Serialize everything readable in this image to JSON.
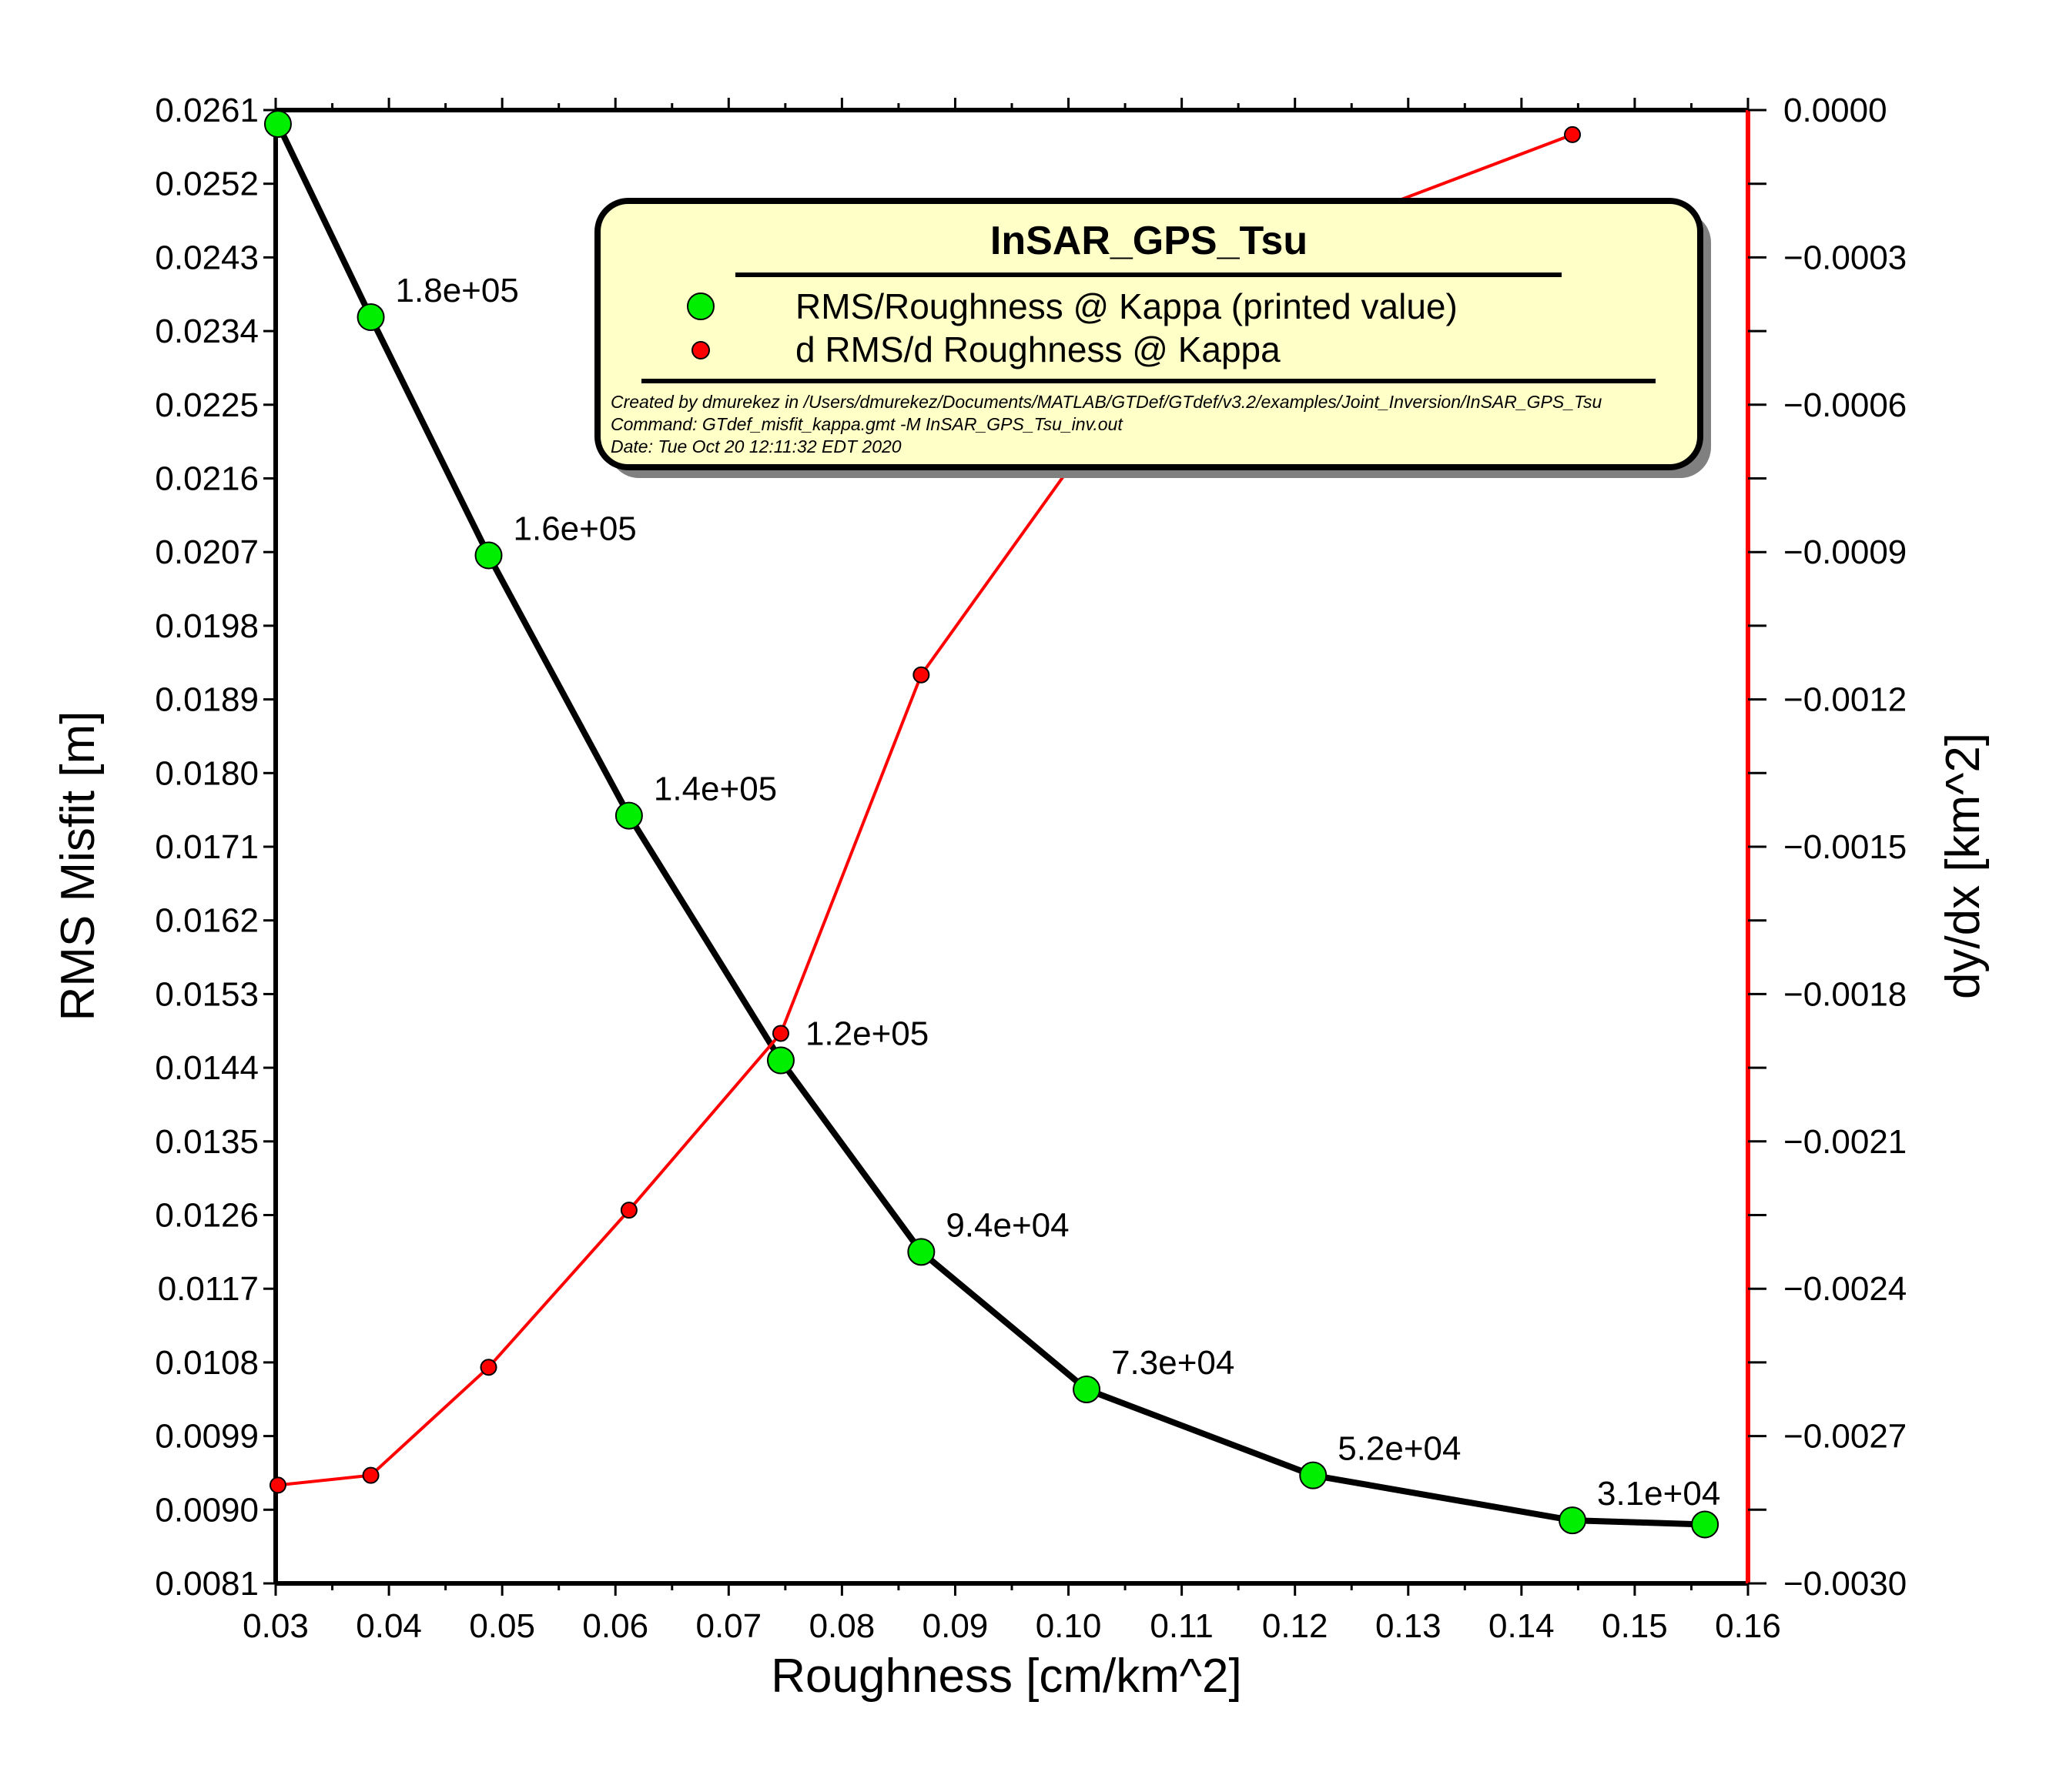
{
  "chart_data": {
    "type": "line",
    "xlabel": "Roughness [cm/km^2]",
    "ylabel": "RMS Misfit [m]",
    "y2label": "dy/dx [km^2]",
    "xlim": [
      0.03,
      0.16
    ],
    "ylim": [
      0.0081,
      0.0261
    ],
    "y2lim": [
      -0.003,
      0.0
    ],
    "x_ticks": [
      "0.03",
      "0.04",
      "0.05",
      "0.06",
      "0.07",
      "0.08",
      "0.09",
      "0.10",
      "0.11",
      "0.12",
      "0.13",
      "0.14",
      "0.15",
      "0.16"
    ],
    "y_ticks": [
      "0.0081",
      "0.0090",
      "0.0099",
      "0.0108",
      "0.0117",
      "0.0126",
      "0.0135",
      "0.0144",
      "0.0153",
      "0.0162",
      "0.0171",
      "0.0180",
      "0.0189",
      "0.0198",
      "0.0207",
      "0.0216",
      "0.0225",
      "0.0234",
      "0.0243",
      "0.0252",
      "0.0261"
    ],
    "y2_ticks": [
      "0.0000",
      "−0.0003",
      "−0.0006",
      "−0.0009",
      "−0.0012",
      "−0.0015",
      "−0.0018",
      "−0.0021",
      "−0.0024",
      "−0.0027",
      "−0.0030"
    ],
    "grid": false,
    "legend_position": "top-right",
    "series": [
      {
        "name": "RMS/Roughness @ Kappa (printed value)",
        "axis": "left",
        "color": "#000000",
        "marker_color": "#00ee00",
        "x": [
          0.0302,
          0.0384,
          0.0488,
          0.0612,
          0.0746,
          0.087,
          0.1016,
          0.1216,
          0.1445,
          0.1562
        ],
        "y": [
          0.02593,
          0.02357,
          0.02066,
          0.01748,
          0.01449,
          0.01215,
          0.01047,
          0.00942,
          0.00887,
          0.00882
        ],
        "labels": [
          "",
          "1.8e+05",
          "1.6e+05",
          "1.4e+05",
          "1.2e+05",
          "9.4e+04",
          "7.3e+04",
          "5.2e+04",
          "3.1e+04",
          ""
        ]
      },
      {
        "name": "d RMS/d Roughness @ Kappa",
        "axis": "right",
        "color": "#ff0000",
        "marker_color": "#ff0000",
        "x": [
          0.0302,
          0.0384,
          0.0488,
          0.0612,
          0.0746,
          0.087,
          0.1016,
          0.1216,
          0.1445
        ],
        "y": [
          -0.0028,
          -0.00278,
          -0.00256,
          -0.00224,
          -0.00188,
          -0.00115,
          -0.00068,
          -0.00025,
          -5e-05
        ]
      }
    ],
    "legend": {
      "title": "InSAR_GPS_Tsu",
      "entries": [
        "RMS/Roughness @ Kappa (printed value)",
        "d RMS/d Roughness @ Kappa"
      ],
      "meta": [
        "Created by dmurekez in /Users/dmurekez/Documents/MATLAB/GTDef/GTdef/v3.2/examples/Joint_Inversion/InSAR_GPS_Tsu",
        "Command: GTdef_misfit_kappa.gmt -M InSAR_GPS_Tsu_inv.out",
        "Date: Tue Oct 20 12:11:32 EDT 2020"
      ]
    },
    "colors": {
      "left_axis": "#000000",
      "right_axis": "#ff0000",
      "legend_bg": "#ffffc8",
      "legend_shadow": "#808080"
    }
  }
}
